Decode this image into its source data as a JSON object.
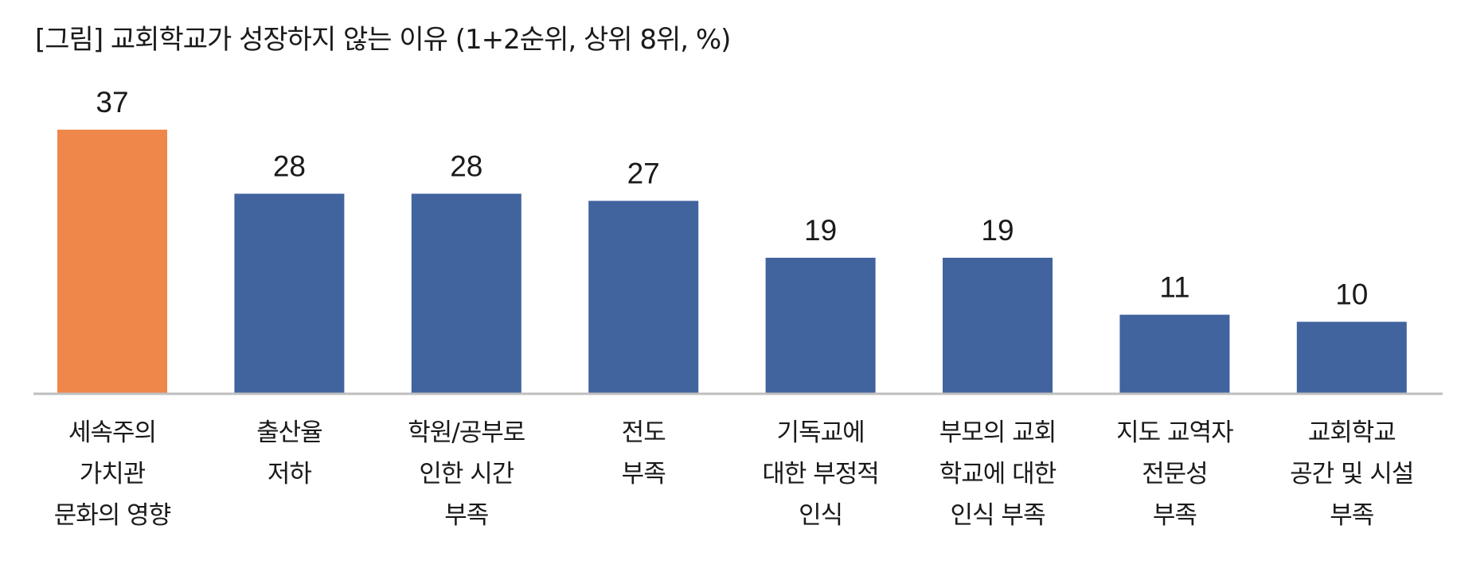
{
  "chart_data": {
    "type": "bar",
    "title": "[그림] 교회학교가 성장하지 않는 이유 (1+2순위, 상위 8위, %)",
    "xlabel": "",
    "ylabel": "",
    "ylim": [
      0,
      37
    ],
    "grid": false,
    "legend": "none",
    "categories": [
      "세속주의 가치관 문화의 영향",
      "출산율 저하",
      "학원/공부로 인한 시간 부족",
      "전도 부족",
      "기독교에 대한 부정적 인식",
      "부모의 교회 학교에 대한 인식 부족",
      "지도 교역자 전문성 부족",
      "교회학교 공간 및 시설 부족"
    ],
    "category_lines": [
      [
        "세속주의",
        "가치관",
        "문화의 영향"
      ],
      [
        "출산율",
        "저하"
      ],
      [
        "학원/공부로",
        "인한 시간",
        "부족"
      ],
      [
        "전도",
        "부족"
      ],
      [
        "기독교에",
        "대한 부정적",
        "인식"
      ],
      [
        "부모의 교회",
        "학교에 대한",
        "인식 부족"
      ],
      [
        "지도 교역자",
        "전문성",
        "부족"
      ],
      [
        "교회학교",
        "공간 및 시설",
        "부족"
      ]
    ],
    "values": [
      37,
      28,
      28,
      27,
      19,
      19,
      11,
      10
    ],
    "colors": {
      "highlight": "#F0874A",
      "default": "#41639E",
      "axis": "#BFBFBF"
    },
    "highlight_index": 0
  }
}
